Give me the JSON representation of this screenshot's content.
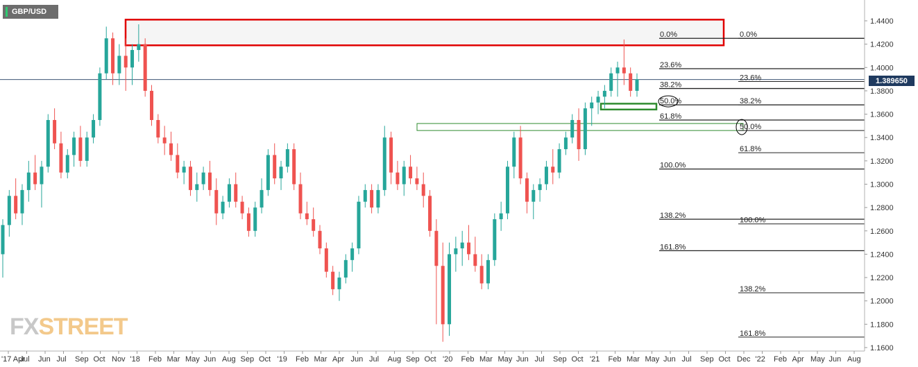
{
  "header": {
    "symbol": "GBP/USD"
  },
  "logo": {
    "part1": "FX",
    "part2": "STREET"
  },
  "current_price": {
    "label": "1.389650",
    "value": 1.38965
  },
  "colors": {
    "up": "#26a69a",
    "down": "#ef5350",
    "red_box": "#e00000",
    "green_box": "#2e8b2e",
    "price_line": "#1f3a5f"
  },
  "chart_data": {
    "type": "candlestick",
    "timeframe": "weekly",
    "ylim": [
      1.16,
      1.45
    ],
    "y_ticks": [
      "1.4400",
      "1.4200",
      "1.4000",
      "1.3800",
      "1.3600",
      "1.3400",
      "1.3200",
      "1.3000",
      "1.2800",
      "1.2600",
      "1.2400",
      "1.2200",
      "1.2000",
      "1.1800",
      "1.1600"
    ],
    "x_ticks": [
      "'17 Apr",
      "Jul",
      "Jun",
      "Jul",
      "Sep",
      "Oct",
      "Nov",
      "'18",
      "Feb",
      "Mar",
      "May",
      "Jun",
      "Aug",
      "Sep",
      "Oct",
      "'19",
      "Feb",
      "Mar",
      "Apr",
      "Jun",
      "Jul",
      "Aug",
      "Sep",
      "Oct",
      "'20",
      "Feb",
      "Mar",
      "May",
      "Jun",
      "Jul",
      "Sep",
      "Oct",
      "'21",
      "Feb",
      "Mar",
      "May",
      "Jun",
      "Jul",
      "Sep",
      "Oct",
      "Dec",
      "'22",
      "Feb",
      "Apr",
      "May",
      "Jun",
      "Aug"
    ],
    "candles_approx": [
      [
        1.24,
        1.27,
        1.22,
        1.265
      ],
      [
        1.265,
        1.295,
        1.255,
        1.29
      ],
      [
        1.29,
        1.305,
        1.27,
        1.275
      ],
      [
        1.275,
        1.3,
        1.265,
        1.295
      ],
      [
        1.295,
        1.32,
        1.285,
        1.31
      ],
      [
        1.31,
        1.325,
        1.295,
        1.3
      ],
      [
        1.3,
        1.32,
        1.28,
        1.315
      ],
      [
        1.315,
        1.36,
        1.31,
        1.355
      ],
      [
        1.355,
        1.365,
        1.33,
        1.335
      ],
      [
        1.335,
        1.345,
        1.305,
        1.31
      ],
      [
        1.31,
        1.33,
        1.305,
        1.325
      ],
      [
        1.325,
        1.345,
        1.315,
        1.34
      ],
      [
        1.34,
        1.35,
        1.315,
        1.32
      ],
      [
        1.32,
        1.345,
        1.315,
        1.34
      ],
      [
        1.34,
        1.36,
        1.335,
        1.355
      ],
      [
        1.355,
        1.4,
        1.35,
        1.395
      ],
      [
        1.395,
        1.435,
        1.39,
        1.425
      ],
      [
        1.425,
        1.43,
        1.385,
        1.395
      ],
      [
        1.395,
        1.42,
        1.385,
        1.41
      ],
      [
        1.41,
        1.425,
        1.38,
        1.4
      ],
      [
        1.4,
        1.42,
        1.385,
        1.415
      ],
      [
        1.415,
        1.437,
        1.405,
        1.42
      ],
      [
        1.42,
        1.425,
        1.375,
        1.38
      ],
      [
        1.38,
        1.385,
        1.35,
        1.355
      ],
      [
        1.355,
        1.36,
        1.335,
        1.34
      ],
      [
        1.34,
        1.35,
        1.325,
        1.335
      ],
      [
        1.335,
        1.345,
        1.32,
        1.325
      ],
      [
        1.325,
        1.335,
        1.305,
        1.31
      ],
      [
        1.31,
        1.32,
        1.3,
        1.315
      ],
      [
        1.315,
        1.32,
        1.29,
        1.295
      ],
      [
        1.295,
        1.31,
        1.285,
        1.3
      ],
      [
        1.3,
        1.315,
        1.295,
        1.31
      ],
      [
        1.31,
        1.32,
        1.29,
        1.295
      ],
      [
        1.295,
        1.305,
        1.265,
        1.275
      ],
      [
        1.275,
        1.29,
        1.27,
        1.285
      ],
      [
        1.285,
        1.305,
        1.28,
        1.3
      ],
      [
        1.3,
        1.31,
        1.28,
        1.285
      ],
      [
        1.285,
        1.29,
        1.27,
        1.275
      ],
      [
        1.275,
        1.28,
        1.255,
        1.26
      ],
      [
        1.26,
        1.285,
        1.255,
        1.28
      ],
      [
        1.28,
        1.305,
        1.275,
        1.295
      ],
      [
        1.295,
        1.33,
        1.29,
        1.325
      ],
      [
        1.325,
        1.335,
        1.3,
        1.305
      ],
      [
        1.305,
        1.32,
        1.295,
        1.315
      ],
      [
        1.315,
        1.335,
        1.31,
        1.33
      ],
      [
        1.33,
        1.335,
        1.295,
        1.3
      ],
      [
        1.3,
        1.31,
        1.27,
        1.275
      ],
      [
        1.275,
        1.285,
        1.265,
        1.27
      ],
      [
        1.27,
        1.28,
        1.255,
        1.26
      ],
      [
        1.26,
        1.265,
        1.24,
        1.245
      ],
      [
        1.245,
        1.25,
        1.22,
        1.225
      ],
      [
        1.225,
        1.23,
        1.205,
        1.21
      ],
      [
        1.21,
        1.225,
        1.2,
        1.22
      ],
      [
        1.22,
        1.24,
        1.215,
        1.235
      ],
      [
        1.235,
        1.25,
        1.225,
        1.245
      ],
      [
        1.245,
        1.29,
        1.24,
        1.285
      ],
      [
        1.285,
        1.3,
        1.28,
        1.295
      ],
      [
        1.295,
        1.3,
        1.275,
        1.28
      ],
      [
        1.28,
        1.3,
        1.275,
        1.295
      ],
      [
        1.295,
        1.35,
        1.29,
        1.34
      ],
      [
        1.34,
        1.345,
        1.3,
        1.31
      ],
      [
        1.31,
        1.32,
        1.295,
        1.3
      ],
      [
        1.3,
        1.32,
        1.29,
        1.315
      ],
      [
        1.315,
        1.325,
        1.3,
        1.305
      ],
      [
        1.305,
        1.315,
        1.295,
        1.3
      ],
      [
        1.3,
        1.31,
        1.28,
        1.29
      ],
      [
        1.29,
        1.295,
        1.255,
        1.26
      ],
      [
        1.26,
        1.27,
        1.18,
        1.23
      ],
      [
        1.23,
        1.25,
        1.165,
        1.18
      ],
      [
        1.18,
        1.25,
        1.17,
        1.24
      ],
      [
        1.24,
        1.255,
        1.225,
        1.245
      ],
      [
        1.245,
        1.26,
        1.23,
        1.25
      ],
      [
        1.25,
        1.265,
        1.235,
        1.24
      ],
      [
        1.24,
        1.255,
        1.225,
        1.23
      ],
      [
        1.23,
        1.24,
        1.21,
        1.215
      ],
      [
        1.215,
        1.24,
        1.21,
        1.235
      ],
      [
        1.235,
        1.275,
        1.23,
        1.27
      ],
      [
        1.27,
        1.285,
        1.26,
        1.275
      ],
      [
        1.275,
        1.32,
        1.27,
        1.315
      ],
      [
        1.315,
        1.345,
        1.305,
        1.34
      ],
      [
        1.34,
        1.35,
        1.3,
        1.305
      ],
      [
        1.305,
        1.31,
        1.275,
        1.285
      ],
      [
        1.285,
        1.3,
        1.27,
        1.295
      ],
      [
        1.295,
        1.305,
        1.285,
        1.3
      ],
      [
        1.3,
        1.32,
        1.295,
        1.315
      ],
      [
        1.315,
        1.33,
        1.3,
        1.31
      ],
      [
        1.31,
        1.335,
        1.305,
        1.33
      ],
      [
        1.33,
        1.345,
        1.325,
        1.34
      ],
      [
        1.34,
        1.36,
        1.335,
        1.355
      ],
      [
        1.355,
        1.365,
        1.32,
        1.33
      ],
      [
        1.33,
        1.37,
        1.325,
        1.365
      ],
      [
        1.365,
        1.375,
        1.35,
        1.37
      ],
      [
        1.37,
        1.38,
        1.36,
        1.375
      ],
      [
        1.375,
        1.385,
        1.365,
        1.38
      ],
      [
        1.38,
        1.4,
        1.375,
        1.395
      ],
      [
        1.395,
        1.405,
        1.375,
        1.4
      ],
      [
        1.4,
        1.424,
        1.385,
        1.395
      ],
      [
        1.395,
        1.4,
        1.375,
        1.38
      ],
      [
        1.38,
        1.395,
        1.375,
        1.39
      ]
    ],
    "annotations": {
      "fib_set_1": [
        {
          "label": "0.0%",
          "price": 1.425
        },
        {
          "label": "23.6%",
          "price": 1.399
        },
        {
          "label": "38.2%",
          "price": 1.382
        },
        {
          "label": "50.0%",
          "price": 1.368
        },
        {
          "label": "61.8%",
          "price": 1.355
        },
        {
          "label": "100.0%",
          "price": 1.313
        },
        {
          "label": "138.2%",
          "price": 1.27
        },
        {
          "label": "161.8%",
          "price": 1.243
        }
      ],
      "fib_set_2": [
        {
          "label": "0.0%",
          "price": 1.425
        },
        {
          "label": "23.6%",
          "price": 1.388
        },
        {
          "label": "38.2%",
          "price": 1.368
        },
        {
          "label": "50.0%",
          "price": 1.346
        },
        {
          "label": "61.8%",
          "price": 1.327
        },
        {
          "label": "100.0%",
          "price": 1.266
        },
        {
          "label": "138.2%",
          "price": 1.207
        },
        {
          "label": "161.8%",
          "price": 1.169
        }
      ],
      "red_zone": [
        1.419,
        1.441
      ],
      "green_zone_upper": [
        1.364,
        1.369
      ],
      "green_zone_lower": [
        1.346,
        1.352
      ]
    }
  }
}
